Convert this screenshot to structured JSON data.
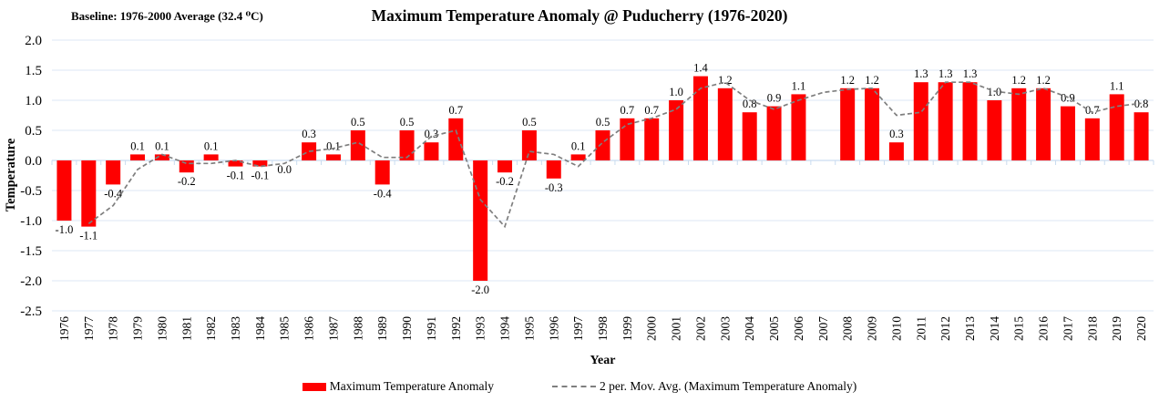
{
  "header": {
    "baseline_note": "Baseline: 1976-2000 Average (32.4 ⁰C)"
  },
  "legend": {
    "bar_series_label": "Maximum Temperature Anomaly",
    "line_series_label": "2 per. Mov. Avg. (Maximum Temperature Anomaly)"
  },
  "chart_data": {
    "type": "bar",
    "title": "Maximum Temperature Anomaly @ Puducherry (1976-2020)",
    "xlabel": "Year",
    "ylabel": "Temperature",
    "ylim": [
      -2.5,
      2.0
    ],
    "ytick_step": 0.5,
    "ytick_labels": [
      "2.0",
      "1.5",
      "1.0",
      "0.5",
      "0.0",
      "-0.5",
      "-1.0",
      "-1.5",
      "-2.0",
      "-2.5"
    ],
    "grid": true,
    "legend_position": "bottom",
    "categories": [
      "1976",
      "1977",
      "1978",
      "1979",
      "1980",
      "1981",
      "1982",
      "1983",
      "1984",
      "1985",
      "1986",
      "1987",
      "1988",
      "1989",
      "1990",
      "1991",
      "1992",
      "1993",
      "1994",
      "1995",
      "1996",
      "1997",
      "1998",
      "1999",
      "2000",
      "2001",
      "2002",
      "2003",
      "2004",
      "2005",
      "2006",
      "2007",
      "2008",
      "2009",
      "2010",
      "2011",
      "2012",
      "2013",
      "2014",
      "2015",
      "2016",
      "2017",
      "2018",
      "2019",
      "2020"
    ],
    "series": [
      {
        "name": "Maximum Temperature Anomaly",
        "type": "bar",
        "color": "#FE0000",
        "values": [
          -1.0,
          -1.1,
          -0.4,
          0.1,
          0.1,
          -0.2,
          0.1,
          -0.1,
          -0.1,
          0.0,
          0.3,
          0.1,
          0.5,
          -0.4,
          0.5,
          0.3,
          0.7,
          -2.0,
          -0.2,
          0.5,
          -0.3,
          0.1,
          0.5,
          0.7,
          0.7,
          1.0,
          1.4,
          1.2,
          0.8,
          0.9,
          1.1,
          null,
          1.2,
          1.2,
          0.3,
          1.3,
          1.3,
          1.3,
          1.0,
          1.2,
          1.2,
          0.9,
          0.7,
          1.1,
          0.8
        ]
      },
      {
        "name": "2 per. Mov. Avg. (Maximum Temperature Anomaly)",
        "type": "line",
        "style": "dashed",
        "color": "#7F7F7F",
        "values": [
          null,
          -1.05,
          -0.75,
          -0.15,
          0.1,
          -0.05,
          -0.05,
          0.0,
          -0.1,
          -0.05,
          0.15,
          0.2,
          0.3,
          0.05,
          0.05,
          0.4,
          0.5,
          -0.65,
          -1.1,
          0.15,
          0.1,
          -0.1,
          0.3,
          0.6,
          0.7,
          0.85,
          1.2,
          1.3,
          1.0,
          0.85,
          1.0,
          1.13,
          1.18,
          1.2,
          0.75,
          0.8,
          1.3,
          1.3,
          1.15,
          1.1,
          1.2,
          1.05,
          0.8,
          0.9,
          0.95
        ]
      }
    ],
    "colors": {
      "bar": "#FE0000",
      "line": "#7F7F7F",
      "gridline": "#DCE7F5",
      "axis": "#C9DCF0",
      "text": "#000000"
    }
  }
}
